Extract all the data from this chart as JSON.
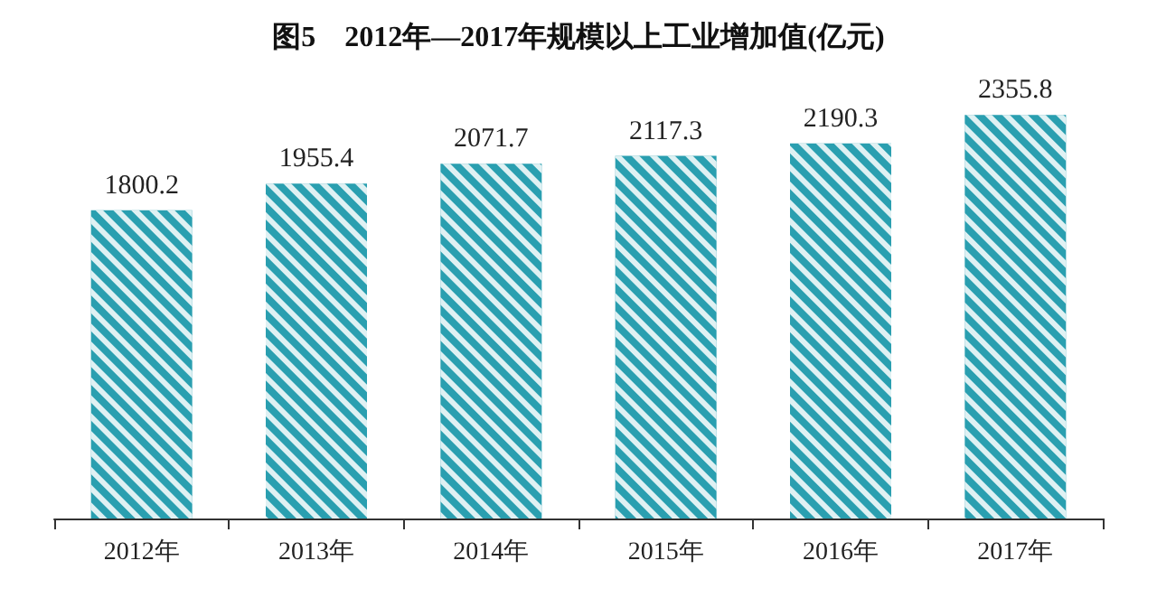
{
  "chart_data": {
    "type": "bar",
    "title": "图5　2012年—2017年规模以上工业增加值(亿元)",
    "categories": [
      "2012年",
      "2013年",
      "2014年",
      "2015年",
      "2016年",
      "2017年"
    ],
    "values": [
      1800.2,
      1955.4,
      2071.7,
      2117.3,
      2190.3,
      2355.8
    ],
    "color": "#2a9fb0",
    "data_labels": true
  }
}
